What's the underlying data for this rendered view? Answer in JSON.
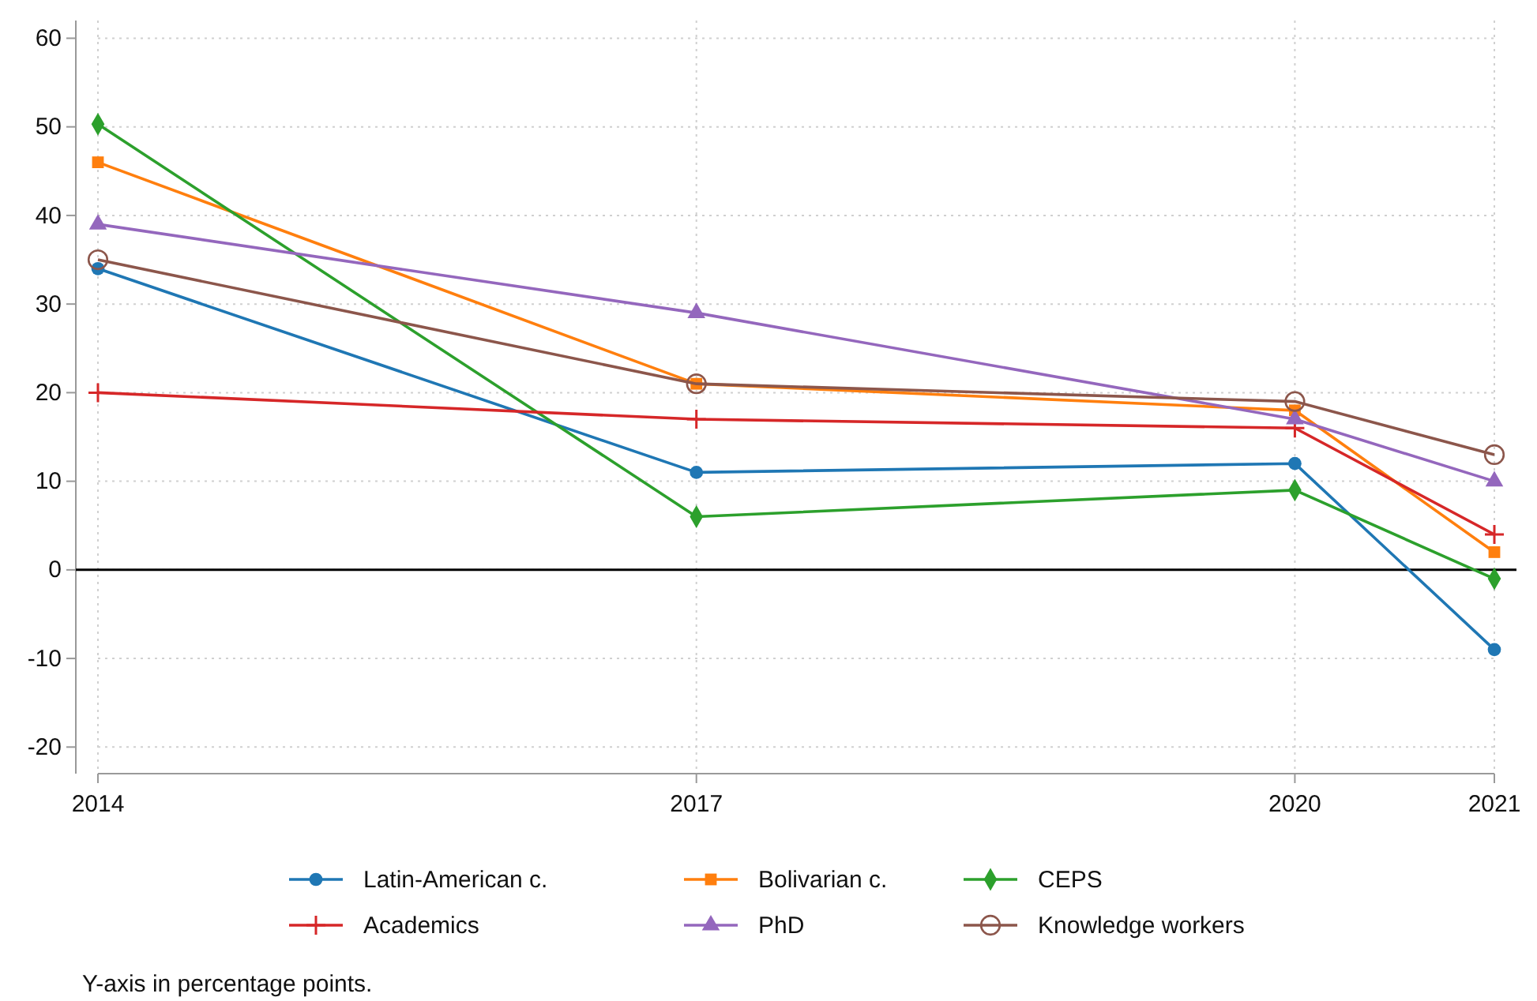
{
  "chart_data": {
    "type": "line",
    "x": [
      2014,
      2017,
      2020,
      2021
    ],
    "xlim": [
      2014,
      2021
    ],
    "xticks": [
      2014,
      2017,
      2020,
      2021
    ],
    "ylim": [
      -23,
      62
    ],
    "yticks": [
      -20,
      -10,
      0,
      10,
      20,
      30,
      40,
      50,
      60
    ],
    "grid": true,
    "legend": "bottom",
    "series": [
      {
        "name": "Latin-American c.",
        "color": "#1f77b4",
        "marker": "circle",
        "values": [
          34,
          11,
          12,
          -9
        ]
      },
      {
        "name": "Bolivarian c.",
        "color": "#ff7f0e",
        "marker": "square",
        "values": [
          46,
          21,
          18,
          2
        ]
      },
      {
        "name": "CEPS",
        "color": "#2ca02c",
        "marker": "diamond",
        "values": [
          50.3,
          6,
          9,
          -1
        ]
      },
      {
        "name": "Academics",
        "color": "#d62728",
        "marker": "cross",
        "values": [
          20,
          17,
          16,
          4
        ]
      },
      {
        "name": "PhD",
        "color": "#9467bd",
        "marker": "triangle",
        "values": [
          39,
          29,
          17,
          10
        ]
      },
      {
        "name": "Knowledge workers",
        "color": "#8c564b",
        "marker": "circle",
        "values": [
          35,
          21,
          19,
          13
        ]
      }
    ],
    "ref_lines": [
      {
        "axis": "y",
        "value": 0,
        "color": "#000000"
      }
    ],
    "annotations": [
      "Y-axis in percentage points."
    ]
  }
}
